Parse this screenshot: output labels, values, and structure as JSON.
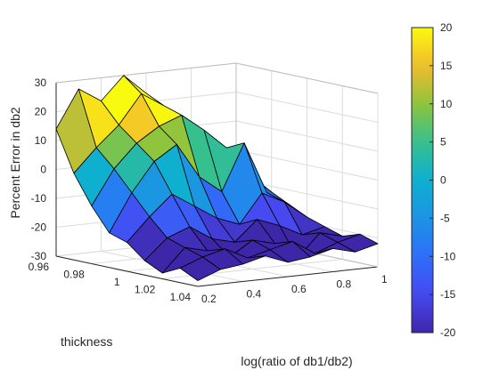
{
  "chart_data": {
    "type": "surface",
    "title": "",
    "xlabel": "log(ratio of db1/db2)",
    "ylabel": "thickness",
    "zlabel": "Percent Error in db2",
    "x_ticks": [
      "0.2",
      "0.4",
      "0.6",
      "0.8",
      "1"
    ],
    "y_ticks": [
      "0.96",
      "0.98",
      "1",
      "1.02",
      "1.04"
    ],
    "z_ticks": [
      "-30",
      "-20",
      "-10",
      "0",
      "10",
      "20",
      "30"
    ],
    "xlim": [
      0.2,
      1.0
    ],
    "ylim": [
      0.96,
      1.04
    ],
    "zlim": [
      -30,
      30
    ],
    "grid": true,
    "colormap": "parula",
    "colorbar": {
      "placement": "right",
      "clim": [
        -20,
        20
      ],
      "ticks": [
        "20",
        "15",
        "10",
        "5",
        "0",
        "-5",
        "-10",
        "-15",
        "-20"
      ]
    },
    "x": [
      0.2,
      0.3,
      0.4,
      0.5,
      0.6,
      0.7,
      0.8,
      0.9,
      1.0
    ],
    "y": [
      0.96,
      0.97,
      0.98,
      0.99,
      1.0,
      1.01,
      1.02,
      1.03,
      1.04
    ],
    "z": [
      [
        14,
        27,
        22,
        30,
        23,
        10,
        5,
        0,
        -5
      ],
      [
        0,
        8,
        15,
        25,
        20,
        10,
        8,
        -5,
        -10
      ],
      [
        -10,
        2,
        10,
        15,
        18,
        12,
        5,
        -5,
        -12
      ],
      [
        -18,
        -5,
        5,
        10,
        -2,
        -8,
        8,
        -10,
        -15
      ],
      [
        -20,
        -12,
        -5,
        -10,
        -15,
        -18,
        -8,
        -12,
        -18
      ],
      [
        -25,
        -18,
        -15,
        -20,
        -22,
        -15,
        -18,
        -22,
        -20
      ],
      [
        -28,
        -20,
        -22,
        -25,
        -20,
        -22,
        -28,
        -20,
        -22
      ],
      [
        -25,
        -22,
        -20,
        -24,
        -22,
        -20,
        -25,
        -22,
        -20
      ],
      [
        -28,
        -25,
        -24,
        -22,
        -25,
        -24,
        -22,
        -24,
        -22
      ]
    ]
  }
}
